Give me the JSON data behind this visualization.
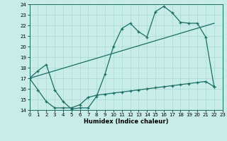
{
  "xlabel": "Humidex (Indice chaleur)",
  "bg_color": "#c8ede8",
  "line_color": "#1a6e64",
  "grid_color": "#a8d8d2",
  "xlim": [
    0,
    23
  ],
  "ylim": [
    14,
    24
  ],
  "yticks": [
    14,
    15,
    16,
    17,
    18,
    19,
    20,
    21,
    22,
    23,
    24
  ],
  "xticks": [
    0,
    1,
    2,
    3,
    4,
    5,
    6,
    7,
    8,
    9,
    10,
    11,
    12,
    13,
    14,
    15,
    16,
    17,
    18,
    19,
    20,
    21,
    22,
    23
  ],
  "line1_x": [
    0,
    1,
    2,
    3,
    4,
    5,
    6,
    7,
    8,
    9,
    10,
    11,
    12,
    13,
    14,
    15,
    16,
    17,
    18,
    19,
    20,
    21,
    22
  ],
  "line1_y": [
    17.0,
    17.7,
    18.3,
    15.9,
    14.8,
    14.1,
    14.2,
    14.2,
    15.3,
    17.4,
    20.0,
    21.7,
    22.2,
    21.4,
    20.9,
    23.3,
    23.8,
    23.2,
    22.3,
    22.2,
    22.2,
    20.9,
    16.2
  ],
  "line2_x": [
    0,
    1,
    2,
    3,
    4,
    5,
    6,
    7,
    8,
    9,
    10,
    11,
    12,
    13,
    14,
    15,
    16,
    17,
    18,
    19,
    20,
    21,
    22
  ],
  "line2_y": [
    17.0,
    15.9,
    14.8,
    14.2,
    14.2,
    14.2,
    14.5,
    15.2,
    15.4,
    15.5,
    15.6,
    15.7,
    15.8,
    15.9,
    16.0,
    16.1,
    16.2,
    16.3,
    16.4,
    16.5,
    16.6,
    16.7,
    16.2
  ],
  "line3_x": [
    0,
    22
  ],
  "line3_y": [
    17.0,
    22.2
  ]
}
